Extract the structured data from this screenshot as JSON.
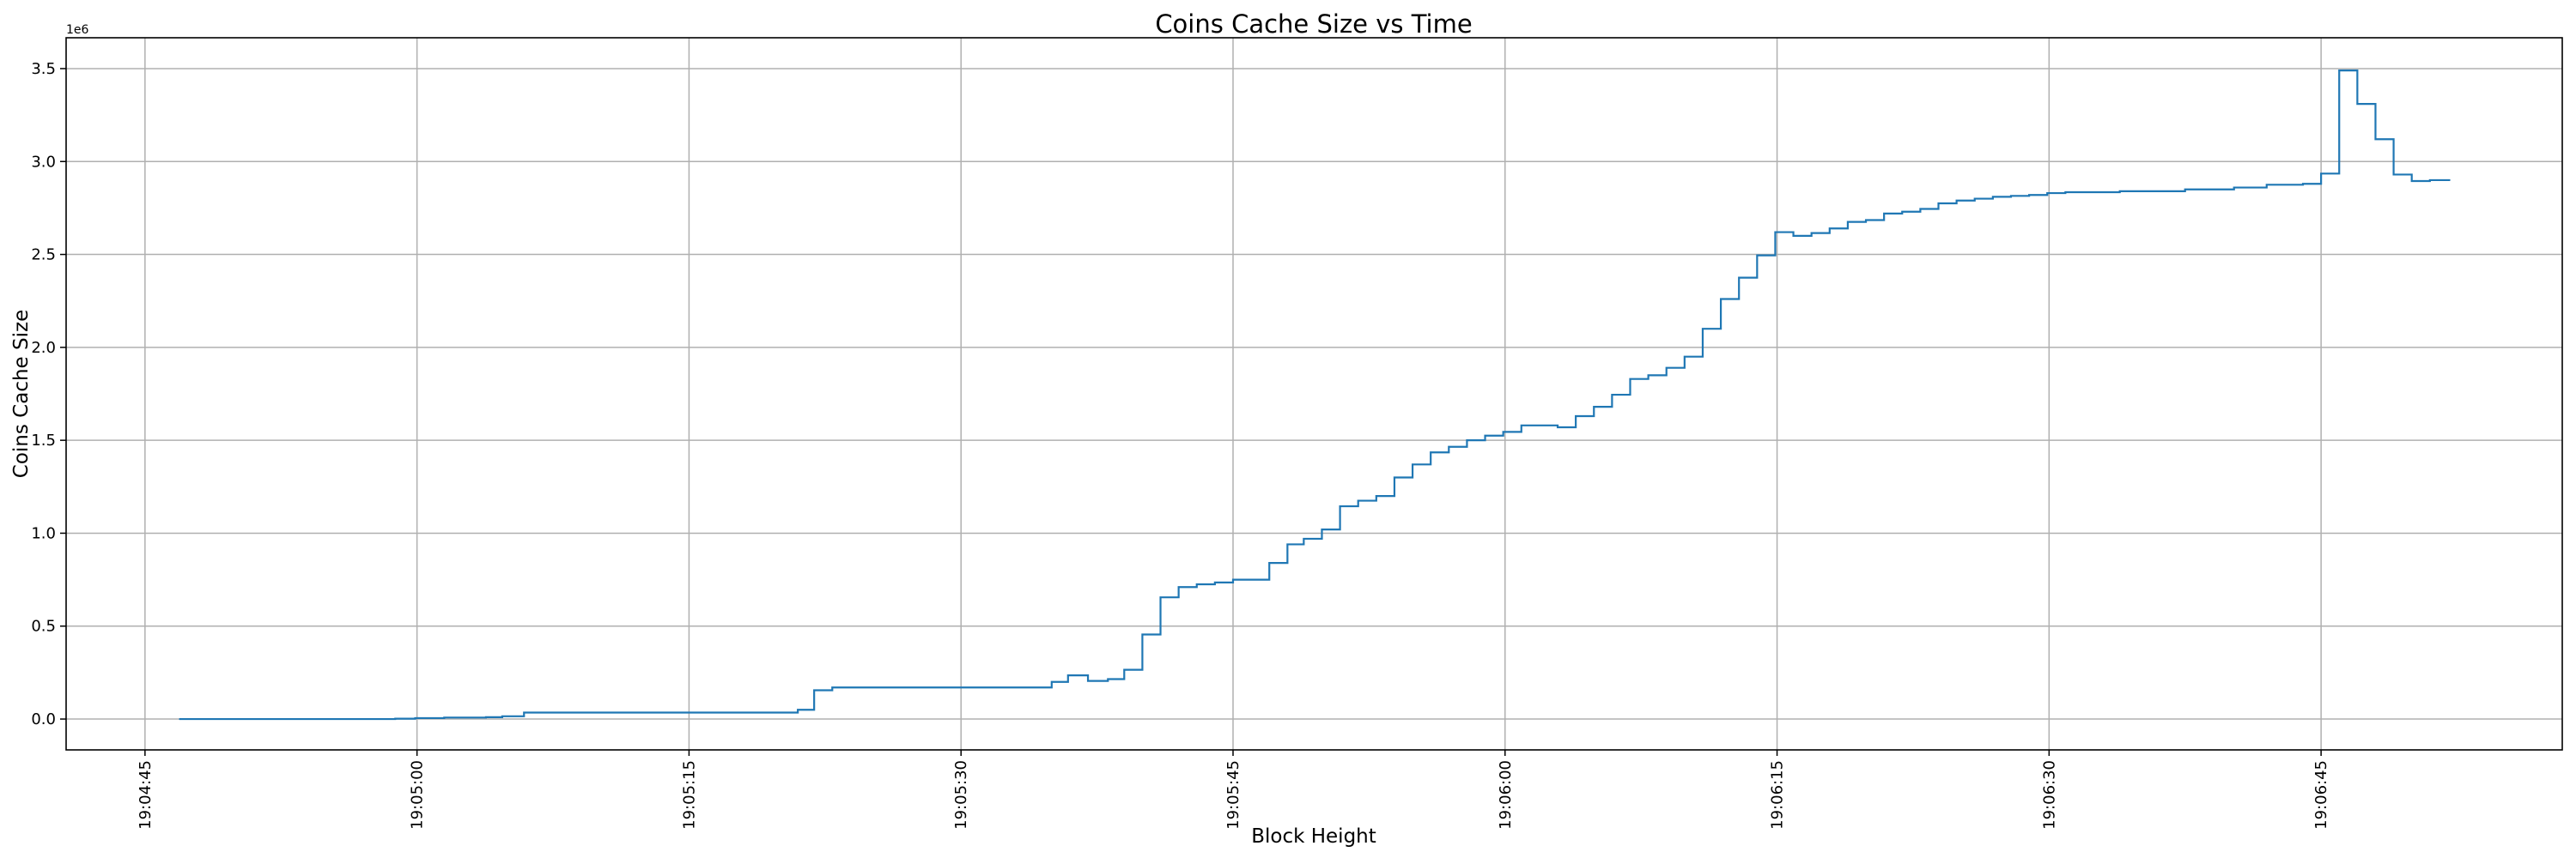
{
  "chart_data": {
    "type": "line",
    "drawstyle": "steps-post",
    "title": "Coins Cache Size vs Time",
    "xlabel": "Block Height",
    "ylabel": "Coins Cache Size",
    "y_offset_label": "1e6",
    "x_origin": "19:04:45",
    "x_units": "seconds since 19:04:45",
    "y_units": "millions (1e6)",
    "xlim": [
      -4.35,
      133.3
    ],
    "ylim": [
      -0.166,
      3.666
    ],
    "grid": true,
    "line_color": "#1f77b4",
    "x_ticks": [
      {
        "value": 0,
        "label": "19:04:45"
      },
      {
        "value": 15,
        "label": "19:05:00"
      },
      {
        "value": 30,
        "label": "19:05:15"
      },
      {
        "value": 45,
        "label": "19:05:30"
      },
      {
        "value": 60,
        "label": "19:05:45"
      },
      {
        "value": 75,
        "label": "19:06:00"
      },
      {
        "value": 90,
        "label": "19:06:15"
      },
      {
        "value": 105,
        "label": "19:06:30"
      },
      {
        "value": 120,
        "label": "19:06:45"
      }
    ],
    "y_ticks": [
      {
        "value": 0.0,
        "label": "0.0"
      },
      {
        "value": 0.5,
        "label": "0.5"
      },
      {
        "value": 1.0,
        "label": "1.0"
      },
      {
        "value": 1.5,
        "label": "1.5"
      },
      {
        "value": 2.0,
        "label": "2.0"
      },
      {
        "value": 2.5,
        "label": "2.5"
      },
      {
        "value": 3.0,
        "label": "3.0"
      },
      {
        "value": 3.5,
        "label": "3.5"
      }
    ],
    "series": [
      {
        "name": "Coins Cache Size",
        "x": [
          1.9,
          13.8,
          14.9,
          16.5,
          18.8,
          19.7,
          20.9,
          36.0,
          36.9,
          37.9,
          50.0,
          50.9,
          52.0,
          53.1,
          54.0,
          55.0,
          56.0,
          57.0,
          58.0,
          59.0,
          60.0,
          62.0,
          63.0,
          63.9,
          64.9,
          65.9,
          66.9,
          67.9,
          68.9,
          69.9,
          70.9,
          71.9,
          72.9,
          73.9,
          74.9,
          75.9,
          77.9,
          78.9,
          79.9,
          80.9,
          81.9,
          82.9,
          83.9,
          84.9,
          85.9,
          86.9,
          87.9,
          88.9,
          89.9,
          90.9,
          91.9,
          92.9,
          93.9,
          94.9,
          95.9,
          96.9,
          97.9,
          98.9,
          99.9,
          100.9,
          101.9,
          102.9,
          103.9,
          104.9,
          105.9,
          108.9,
          112.5,
          115.2,
          117.0,
          119.0,
          120.0,
          121.0,
          122.0,
          123.0,
          124.0,
          125.0,
          126.0,
          127.1
        ],
        "y": [
          0.0,
          0.002,
          0.005,
          0.008,
          0.01,
          0.015,
          0.035,
          0.05,
          0.155,
          0.17,
          0.2,
          0.235,
          0.205,
          0.215,
          0.265,
          0.455,
          0.655,
          0.71,
          0.725,
          0.735,
          0.75,
          0.84,
          0.94,
          0.97,
          1.02,
          1.145,
          1.175,
          1.2,
          1.3,
          1.37,
          1.435,
          1.465,
          1.5,
          1.525,
          1.545,
          1.58,
          1.57,
          1.63,
          1.68,
          1.745,
          1.83,
          1.85,
          1.89,
          1.95,
          2.1,
          2.26,
          2.375,
          2.495,
          2.62,
          2.6,
          2.615,
          2.64,
          2.675,
          2.685,
          2.72,
          2.73,
          2.745,
          2.775,
          2.79,
          2.8,
          2.81,
          2.815,
          2.82,
          2.83,
          2.835,
          2.84,
          2.85,
          2.86,
          2.875,
          2.88,
          2.935,
          3.49,
          3.31,
          3.12,
          2.93,
          2.895,
          2.9,
          2.9
        ]
      }
    ]
  }
}
